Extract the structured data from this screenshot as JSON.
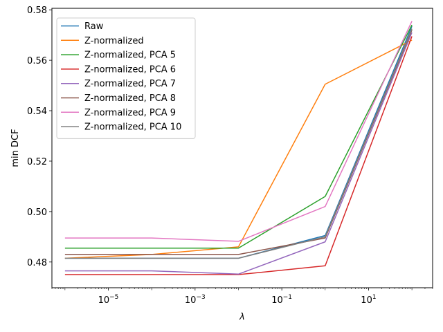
{
  "chart_data": {
    "type": "line",
    "xlabel": "λ",
    "ylabel": "min DCF",
    "xscale": "log",
    "xlim": [
      5e-07,
      300
    ],
    "ylim": [
      0.4698,
      0.5806
    ],
    "grid": false,
    "legend_position": "top-left",
    "x": [
      1e-06,
      0.0001,
      0.01,
      1,
      100
    ],
    "x_ticks": [
      {
        "value": 1e-05,
        "base": "10",
        "exp": "−5"
      },
      {
        "value": 0.001,
        "base": "10",
        "exp": "−3"
      },
      {
        "value": 0.1,
        "base": "10",
        "exp": "−1"
      },
      {
        "value": 10,
        "base": "10",
        "exp": "1"
      }
    ],
    "y_ticks": [
      "0.48",
      "0.50",
      "0.52",
      "0.54",
      "0.56",
      "0.58"
    ],
    "series": [
      {
        "name": "Raw",
        "color": "#1f77b4",
        "values": [
          0.4815,
          0.4815,
          0.4815,
          0.4905,
          0.5735
        ]
      },
      {
        "name": "Z-normalized",
        "color": "#ff7f0e",
        "values": [
          0.4815,
          0.483,
          0.486,
          0.5505,
          0.568
        ]
      },
      {
        "name": "Z-normalized, PCA 5",
        "color": "#2ca02c",
        "values": [
          0.4855,
          0.4855,
          0.4855,
          0.506,
          0.574
        ]
      },
      {
        "name": "Z-normalized, PCA 6",
        "color": "#d62728",
        "values": [
          0.475,
          0.475,
          0.475,
          0.4785,
          0.5695
        ]
      },
      {
        "name": "Z-normalized, PCA 7",
        "color": "#9467bd",
        "values": [
          0.4765,
          0.4765,
          0.4752,
          0.488,
          0.571
        ]
      },
      {
        "name": "Z-normalized, PCA 8",
        "color": "#8c564b",
        "values": [
          0.483,
          0.483,
          0.483,
          0.4895,
          0.572
        ]
      },
      {
        "name": "Z-normalized, PCA 9",
        "color": "#e377c2",
        "values": [
          0.4895,
          0.4895,
          0.4882,
          0.502,
          0.5755
        ]
      },
      {
        "name": "Z-normalized, PCA 10",
        "color": "#7f7f7f",
        "values": [
          0.4815,
          0.4815,
          0.4815,
          0.49,
          0.5725
        ]
      }
    ]
  }
}
